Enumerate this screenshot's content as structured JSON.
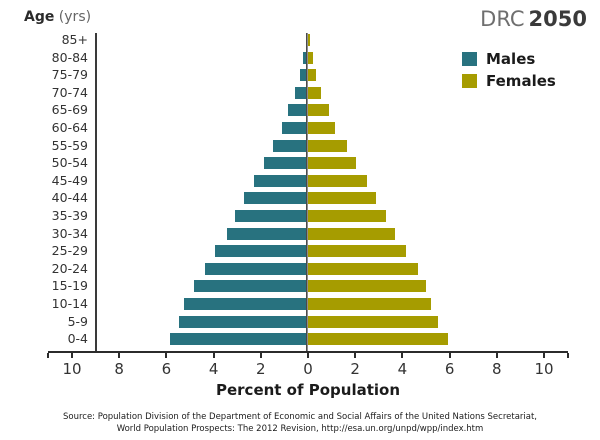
{
  "header": {
    "age_label": "Age",
    "age_units": " (yrs)"
  },
  "title": {
    "region": "DRC",
    "year": "2050"
  },
  "legend": {
    "males": "Males",
    "females": "Females"
  },
  "colors": {
    "males": "#28727F",
    "females": "#A69C00",
    "axis": "#2B2B2B",
    "center_line": "#8E8E8E"
  },
  "x_axis": {
    "tick_labels": [
      "10",
      "8",
      "6",
      "4",
      "2",
      "0",
      "2",
      "4",
      "6",
      "8",
      "10"
    ],
    "label": "Percent of Population"
  },
  "source": {
    "line1": "Source: Population Division of the Department of Economic and Social Affairs of the United Nations Secretariat,",
    "line2": "World Population Prospects: The 2012 Revision, http://esa.un.org/unpd/wpp/index.htm"
  },
  "chart_data": {
    "type": "bar",
    "subtype": "population-pyramid",
    "title": "DRC 2050",
    "xlabel": "Percent of Population",
    "ylabel": "Age (yrs)",
    "legend_position": "top-right",
    "grid": false,
    "x_tick_values_each_side": [
      0,
      2,
      4,
      6,
      8,
      10
    ],
    "xlim_each_side": [
      0,
      11
    ],
    "categories": [
      "85+",
      "80-84",
      "75-79",
      "70-74",
      "65-69",
      "60-64",
      "55-59",
      "50-54",
      "45-49",
      "40-44",
      "35-39",
      "30-34",
      "25-29",
      "20-24",
      "15-19",
      "10-14",
      "5-9",
      "0-4"
    ],
    "series": [
      {
        "name": "Males",
        "side": "left",
        "values": [
          0.1,
          0.2,
          0.35,
          0.55,
          0.85,
          1.1,
          1.5,
          1.85,
          2.3,
          2.7,
          3.1,
          3.45,
          3.95,
          4.35,
          4.85,
          5.25,
          5.45,
          5.85
        ]
      },
      {
        "name": "Females",
        "side": "right",
        "values": [
          0.1,
          0.2,
          0.35,
          0.55,
          0.9,
          1.15,
          1.65,
          2.05,
          2.5,
          2.9,
          3.3,
          3.7,
          4.15,
          4.65,
          5.0,
          5.2,
          5.5,
          5.95
        ]
      }
    ]
  }
}
